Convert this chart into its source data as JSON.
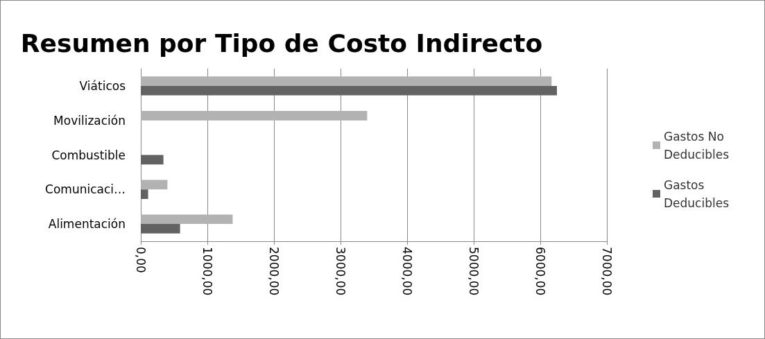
{
  "chart_data": {
    "type": "bar",
    "title": "Resumen por Tipo de Costo Indirecto",
    "orientation": "horizontal",
    "categories": [
      "Viáticos",
      "Movilización",
      "Combustible",
      "Comunicaci…",
      "Alimentación"
    ],
    "series": [
      {
        "name": "Gastos No Deducibles",
        "color": "#b2b2b2",
        "values": [
          6170,
          3400,
          null,
          400,
          1380
        ]
      },
      {
        "name": "Gastos Deducibles",
        "color": "#626262",
        "values": [
          6250,
          null,
          340,
          110,
          590
        ]
      }
    ],
    "xlim": [
      0,
      7000
    ],
    "xticks": [
      {
        "value": 0,
        "label": "0,00"
      },
      {
        "value": 1000,
        "label": "1000,00"
      },
      {
        "value": 2000,
        "label": "2000,00"
      },
      {
        "value": 3000,
        "label": "3000,00"
      },
      {
        "value": 4000,
        "label": "4000,00"
      },
      {
        "value": 5000,
        "label": "5000,00"
      },
      {
        "value": 6000,
        "label": "6000,00"
      },
      {
        "value": 7000,
        "label": "7000,00"
      }
    ],
    "grid": "x",
    "legend": "right"
  }
}
